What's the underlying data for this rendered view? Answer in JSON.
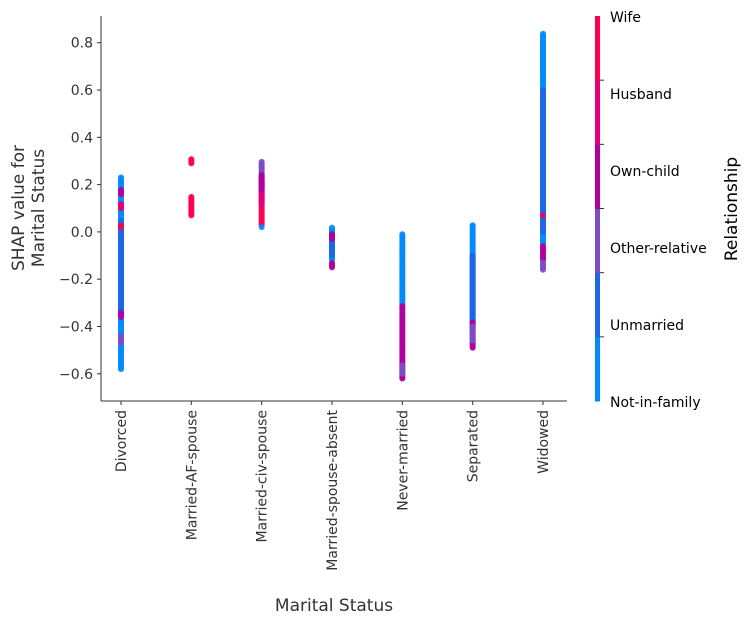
{
  "chart_data": {
    "type": "scatter",
    "xlabel": "Marital Status",
    "ylabel": [
      "SHAP value for",
      "Marital Status"
    ],
    "categories": [
      "Divorced",
      "Married-AF-spouse",
      "Married-civ-spouse",
      "Married-spouse-absent",
      "Never-married",
      "Separated",
      "Widowed"
    ],
    "ylim": [
      -0.715,
      0.913
    ],
    "yticks": [
      -0.6,
      -0.4,
      -0.2,
      0.0,
      0.2,
      0.4,
      0.6,
      0.8
    ],
    "ytick_labels": [
      "−0.6",
      "−0.4",
      "−0.2",
      "0.0",
      "0.2",
      "0.4",
      "0.6",
      "0.8"
    ],
    "grid": false,
    "colorbar": {
      "label": "Relationship",
      "categories": [
        "Not-in-family",
        "Unmarried",
        "Other-relative",
        "Own-child",
        "Husband",
        "Wife"
      ],
      "colors": [
        "#008bfb",
        "#1e66e4",
        "#7c4dc8",
        "#b0009e",
        "#e2007a",
        "#ff0052"
      ]
    },
    "point_runs": [
      {
        "category": "Divorced",
        "runs": [
          [
            -0.58,
            0.23,
            "Not-in-family"
          ],
          [
            -0.35,
            0.05,
            "Unmarried"
          ],
          [
            0.16,
            0.18,
            "Own-child"
          ],
          [
            0.1,
            0.12,
            "Husband"
          ],
          [
            0.02,
            0.03,
            "Wife"
          ],
          [
            -0.36,
            -0.34,
            "Own-child"
          ],
          [
            -0.47,
            -0.44,
            "Other-relative"
          ]
        ]
      },
      {
        "category": "Married-AF-spouse",
        "runs": [
          [
            0.29,
            0.31,
            "Wife"
          ],
          [
            0.07,
            0.15,
            "Wife"
          ]
        ]
      },
      {
        "category": "Married-civ-spouse",
        "runs": [
          [
            0.03,
            0.2,
            "Wife"
          ],
          [
            0.12,
            0.22,
            "Husband"
          ],
          [
            0.2,
            0.3,
            "Other-relative"
          ],
          [
            0.18,
            0.24,
            "Own-child"
          ],
          [
            0.02,
            0.02,
            "Not-in-family"
          ]
        ]
      },
      {
        "category": "Married-spouse-absent",
        "runs": [
          [
            -0.12,
            0.02,
            "Not-in-family"
          ],
          [
            -0.1,
            0.0,
            "Unmarried"
          ],
          [
            -0.03,
            -0.01,
            "Own-child"
          ],
          [
            -0.15,
            -0.13,
            "Own-child"
          ]
        ]
      },
      {
        "category": "Never-married",
        "runs": [
          [
            -0.31,
            -0.01,
            "Not-in-family"
          ],
          [
            -0.62,
            -0.31,
            "Own-child"
          ],
          [
            -0.6,
            -0.56,
            "Other-relative"
          ]
        ]
      },
      {
        "category": "Separated",
        "runs": [
          [
            -0.38,
            0.03,
            "Not-in-family"
          ],
          [
            -0.4,
            -0.1,
            "Unmarried"
          ],
          [
            -0.49,
            -0.38,
            "Own-child"
          ],
          [
            -0.46,
            -0.4,
            "Other-relative"
          ]
        ]
      },
      {
        "category": "Widowed",
        "runs": [
          [
            -0.05,
            0.84,
            "Not-in-family"
          ],
          [
            0.0,
            0.6,
            "Unmarried"
          ],
          [
            0.07,
            0.07,
            "Wife"
          ],
          [
            -0.12,
            -0.06,
            "Own-child"
          ],
          [
            -0.16,
            -0.13,
            "Other-relative"
          ]
        ]
      }
    ]
  }
}
